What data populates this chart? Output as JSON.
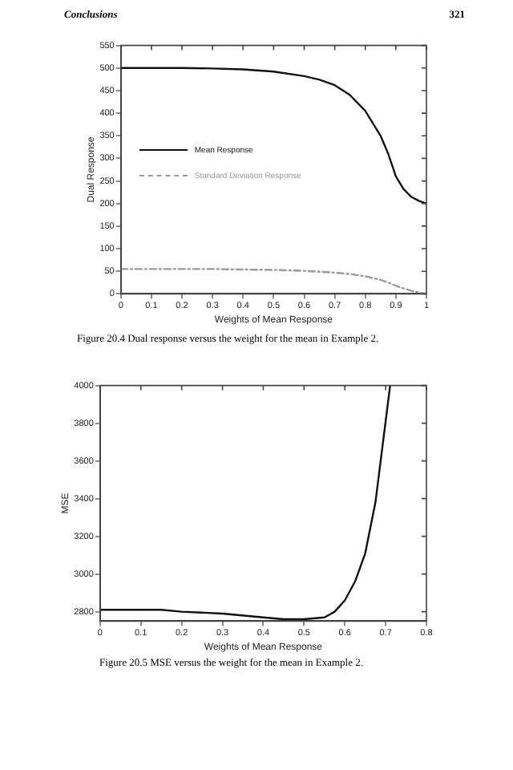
{
  "chart_data": [
    {
      "type": "line",
      "xlabel": "Weights of Mean Response",
      "ylabel": "Dual Response",
      "annotations": [
        "Conclusions",
        "321",
        "Figure 20.4 Dual response versus the weight for the mean in Example 2."
      ],
      "x": [
        0,
        0.1,
        0.2,
        0.3,
        0.4,
        0.5,
        0.6,
        0.65,
        0.7,
        0.75,
        0.8,
        0.85,
        0.875,
        0.9,
        0.925,
        0.95,
        0.975,
        1
      ],
      "series": [
        {
          "name": "Mean Response",
          "color": "#111111",
          "line_style": "solid",
          "values": [
            500,
            500,
            500,
            499,
            497,
            492,
            482,
            474,
            462,
            440,
            405,
            350,
            310,
            260,
            232,
            215,
            206,
            200
          ]
        },
        {
          "name": "Standard Deviation Response",
          "color": "#999999",
          "line_style": "dashed",
          "values": [
            55,
            55,
            55,
            55,
            54,
            53,
            51,
            49,
            47,
            44,
            39,
            31,
            25,
            18,
            12,
            7,
            3,
            0
          ]
        }
      ],
      "xlim": [
        0,
        1
      ],
      "xticks": [
        0,
        0.1,
        0.2,
        0.3,
        0.4,
        0.5,
        0.6,
        0.7,
        0.8,
        0.9,
        1
      ],
      "ylim": [
        0,
        550
      ],
      "yticks": [
        0,
        50,
        100,
        150,
        200,
        250,
        300,
        350,
        400,
        450,
        500,
        550
      ],
      "grid": false,
      "legend": "left",
      "marker": "none"
    },
    {
      "type": "line",
      "xlabel": "Weights of Mean Response",
      "ylabel": "MSE",
      "annotations": [
        "Figure 20.5 MSE versus the weight for the mean in Example 2."
      ],
      "x": [
        0,
        0.1,
        0.15,
        0.2,
        0.3,
        0.4,
        0.45,
        0.5,
        0.55,
        0.575,
        0.6,
        0.625,
        0.65,
        0.675,
        0.7,
        0.711
      ],
      "series": [
        {
          "color": "#111111",
          "line_style": "solid",
          "values": [
            2810,
            2810,
            2810,
            2800,
            2790,
            2770,
            2760,
            2760,
            2770,
            2800,
            2860,
            2960,
            3110,
            3380,
            3810,
            4000
          ]
        }
      ],
      "xlim": [
        0,
        0.8
      ],
      "xticks": [
        0,
        0.1,
        0.2,
        0.3,
        0.4,
        0.5,
        0.6,
        0.7,
        0.8
      ],
      "ylim": [
        2750,
        4000
      ],
      "yticks": [
        2800,
        3000,
        3200,
        3400,
        3600,
        3800,
        4000
      ],
      "grid": false,
      "legend": false,
      "marker": "none"
    }
  ]
}
